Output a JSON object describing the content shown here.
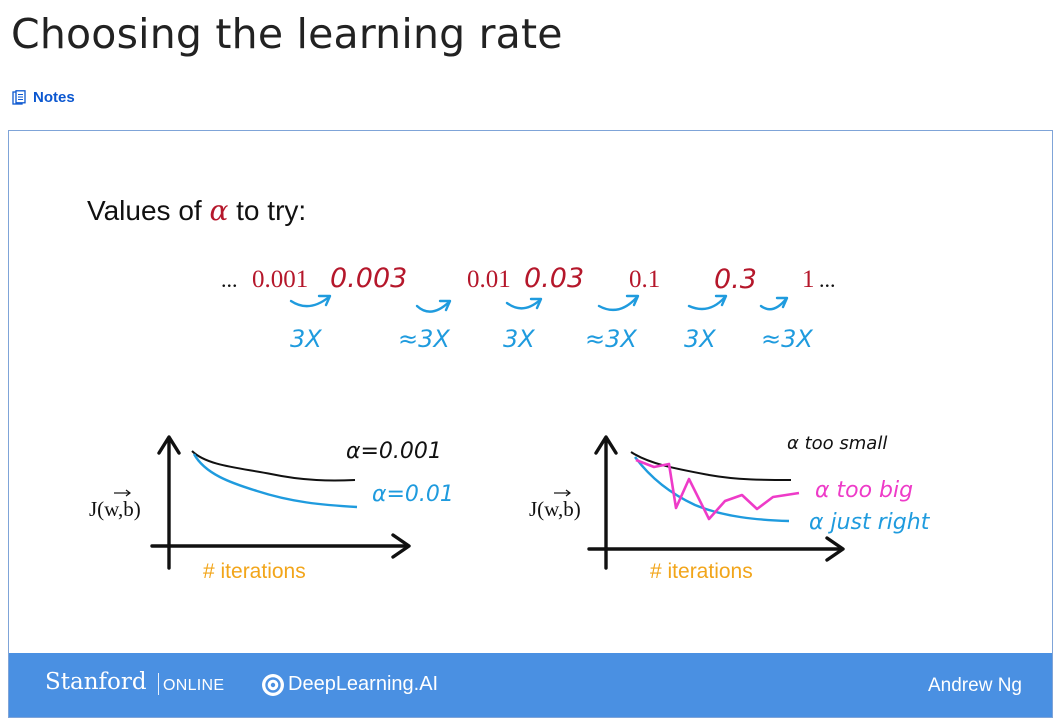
{
  "page": {
    "title": "Choosing the learning rate",
    "notes_label": "Notes"
  },
  "slide": {
    "heading_prefix": "Values of",
    "heading_alpha": "α",
    "heading_suffix": "to try:",
    "lead_ellipsis": "...",
    "trail_ellipsis": "...",
    "values": [
      "0.001",
      "0.003",
      "0.01",
      "0.03",
      "0.1",
      "0.3",
      "1"
    ],
    "multipliers": [
      "3X",
      "≈3X",
      "3X",
      "≈3X",
      "3X",
      "≈3X"
    ],
    "left_plot": {
      "ylabel": "J(w,b)",
      "xlabel": "# iterations",
      "annotations": [
        "α=0.001",
        "α=0.01"
      ]
    },
    "right_plot": {
      "ylabel": "J(w,b)",
      "xlabel": "# iterations",
      "annotations": [
        "α too small",
        "α too big",
        "α just right"
      ]
    }
  },
  "footer": {
    "stanford": "Stanford",
    "online": "ONLINE",
    "deeplearning": "DeepLearning.AI",
    "instructor": "Andrew Ng"
  },
  "colors": {
    "red": "#b5172b",
    "blue": "#1f9bde",
    "magenta": "#ee3bc8",
    "orange": "#f2a51a",
    "footer": "#4a90e2",
    "link": "#0b57d0"
  }
}
